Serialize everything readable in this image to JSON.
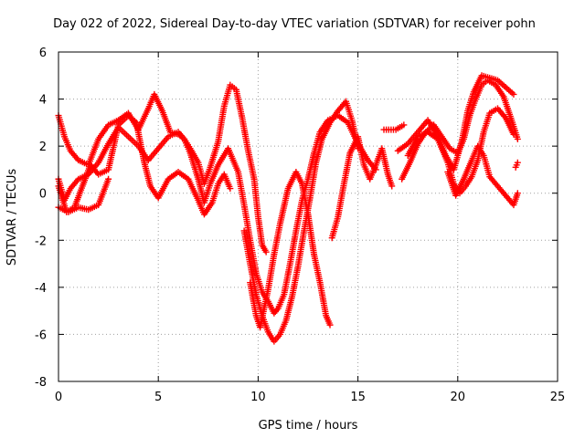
{
  "chart_data": {
    "type": "scatter",
    "title": "Day 022 of 2022, Sidereal Day-to-day VTEC variation (SDTVAR) for receiver pohn",
    "xlabel": "GPS time / hours",
    "ylabel": "SDTVAR / TECUs",
    "xlim": [
      0,
      25
    ],
    "ylim": [
      -8,
      6
    ],
    "xticks": [
      0,
      5,
      10,
      15,
      20,
      25
    ],
    "yticks": [
      -8,
      -6,
      -4,
      -2,
      0,
      2,
      4,
      6
    ],
    "grid": true,
    "marker": "+",
    "color": "#ff0000",
    "series": [
      {
        "name": "track-1",
        "points": [
          [
            0.0,
            3.3
          ],
          [
            0.3,
            2.4
          ],
          [
            0.6,
            1.8
          ],
          [
            1.0,
            1.4
          ],
          [
            1.5,
            1.2
          ],
          [
            2.0,
            2.3
          ],
          [
            2.5,
            2.9
          ],
          [
            3.0,
            3.1
          ],
          [
            3.5,
            3.4
          ],
          [
            4.0,
            2.7
          ],
          [
            4.5,
            3.6
          ],
          [
            4.8,
            4.2
          ],
          [
            5.2,
            3.5
          ],
          [
            5.6,
            2.6
          ],
          [
            6.0,
            2.5
          ],
          [
            6.3,
            2.3
          ],
          [
            6.6,
            1.9
          ],
          [
            7.0,
            1.3
          ],
          [
            7.3,
            0.4
          ],
          [
            7.6,
            1.1
          ],
          [
            8.0,
            2.2
          ],
          [
            8.3,
            3.7
          ],
          [
            8.6,
            4.6
          ],
          [
            8.9,
            4.4
          ],
          [
            9.2,
            3.2
          ],
          [
            9.5,
            1.8
          ],
          [
            9.8,
            0.6
          ],
          [
            10.0,
            -1.0
          ],
          [
            10.2,
            -2.2
          ],
          [
            10.4,
            -2.5
          ]
        ]
      },
      {
        "name": "track-2",
        "points": [
          [
            0.0,
            0.6
          ],
          [
            0.3,
            -0.3
          ],
          [
            0.6,
            0.2
          ],
          [
            1.0,
            0.6
          ],
          [
            1.5,
            0.8
          ],
          [
            2.0,
            1.3
          ],
          [
            2.5,
            2.1
          ],
          [
            3.0,
            2.8
          ],
          [
            3.5,
            2.4
          ],
          [
            4.0,
            2.0
          ],
          [
            4.5,
            1.4
          ],
          [
            5.0,
            1.9
          ],
          [
            5.5,
            2.4
          ],
          [
            6.0,
            2.6
          ],
          [
            6.3,
            2.3
          ],
          [
            6.6,
            1.7
          ],
          [
            7.0,
            0.6
          ],
          [
            7.3,
            -0.4
          ],
          [
            7.6,
            0.4
          ],
          [
            8.0,
            1.2
          ],
          [
            8.5,
            1.9
          ],
          [
            9.0,
            0.9
          ],
          [
            9.3,
            -0.5
          ],
          [
            9.6,
            -2.0
          ],
          [
            9.9,
            -3.4
          ],
          [
            10.2,
            -4.2
          ],
          [
            10.5,
            -4.6
          ],
          [
            10.8,
            -5.1
          ],
          [
            11.0,
            -4.9
          ],
          [
            11.3,
            -4.3
          ],
          [
            11.6,
            -3.0
          ],
          [
            11.9,
            -1.6
          ],
          [
            12.2,
            -0.3
          ],
          [
            12.5,
            0.6
          ],
          [
            12.8,
            1.7
          ],
          [
            13.1,
            2.6
          ],
          [
            13.5,
            3.1
          ],
          [
            14.0,
            3.3
          ],
          [
            14.5,
            3.0
          ],
          [
            15.0,
            2.1
          ],
          [
            15.5,
            1.4
          ],
          [
            15.9,
            1.0
          ]
        ]
      },
      {
        "name": "track-3",
        "points": [
          [
            0.0,
            0.3
          ],
          [
            0.4,
            -0.8
          ],
          [
            0.8,
            -0.6
          ],
          [
            1.2,
            0.3
          ],
          [
            1.6,
            1.2
          ],
          [
            2.0,
            0.8
          ],
          [
            2.5,
            1.0
          ],
          [
            3.0,
            2.9
          ],
          [
            3.5,
            3.3
          ],
          [
            3.9,
            3.0
          ],
          [
            4.3,
            1.3
          ],
          [
            4.6,
            0.3
          ],
          [
            5.0,
            -0.2
          ],
          [
            5.5,
            0.6
          ],
          [
            6.0,
            0.9
          ],
          [
            6.5,
            0.6
          ],
          [
            7.0,
            -0.3
          ],
          [
            7.3,
            -0.9
          ],
          [
            7.7,
            -0.4
          ],
          [
            8.0,
            0.4
          ],
          [
            8.3,
            0.8
          ],
          [
            8.6,
            0.2
          ]
        ]
      },
      {
        "name": "track-4",
        "points": [
          [
            0.0,
            -0.6
          ],
          [
            0.5,
            -0.8
          ],
          [
            1.0,
            -0.6
          ],
          [
            1.5,
            -0.7
          ],
          [
            2.0,
            -0.5
          ],
          [
            2.5,
            0.6
          ]
        ]
      },
      {
        "name": "track-5",
        "points": [
          [
            9.3,
            -1.6
          ],
          [
            9.6,
            -3.0
          ],
          [
            9.9,
            -4.3
          ],
          [
            10.2,
            -5.2
          ],
          [
            10.5,
            -5.9
          ],
          [
            10.8,
            -6.3
          ],
          [
            11.1,
            -6.0
          ],
          [
            11.4,
            -5.4
          ],
          [
            11.7,
            -4.4
          ],
          [
            12.0,
            -3.1
          ],
          [
            12.3,
            -1.6
          ],
          [
            12.6,
            -0.2
          ],
          [
            12.9,
            1.3
          ],
          [
            13.2,
            2.3
          ],
          [
            13.6,
            3.0
          ],
          [
            14.0,
            3.5
          ],
          [
            14.4,
            3.9
          ],
          [
            14.7,
            3.1
          ],
          [
            15.0,
            1.9
          ]
        ]
      },
      {
        "name": "track-6",
        "points": [
          [
            9.6,
            -3.8
          ],
          [
            9.9,
            -5.2
          ],
          [
            10.1,
            -5.7
          ],
          [
            10.5,
            -4.1
          ],
          [
            10.8,
            -2.6
          ],
          [
            11.1,
            -1.3
          ],
          [
            11.5,
            0.2
          ],
          [
            11.9,
            0.9
          ],
          [
            12.2,
            0.4
          ],
          [
            12.5,
            -0.9
          ],
          [
            12.8,
            -2.6
          ],
          [
            13.1,
            -3.8
          ],
          [
            13.4,
            -5.2
          ],
          [
            13.6,
            -5.6
          ]
        ]
      },
      {
        "name": "track-7",
        "points": [
          [
            13.7,
            -1.9
          ],
          [
            14.0,
            -1.0
          ],
          [
            14.3,
            0.4
          ],
          [
            14.6,
            1.7
          ],
          [
            15.0,
            2.4
          ],
          [
            15.3,
            1.2
          ],
          [
            15.6,
            0.6
          ],
          [
            15.9,
            1.2
          ],
          [
            16.2,
            1.9
          ],
          [
            16.5,
            0.8
          ],
          [
            16.7,
            0.3
          ]
        ]
      },
      {
        "name": "track-8",
        "points": [
          [
            17.2,
            0.6
          ],
          [
            17.6,
            1.3
          ],
          [
            18.0,
            2.1
          ],
          [
            18.4,
            2.6
          ],
          [
            18.8,
            2.9
          ],
          [
            19.2,
            2.4
          ],
          [
            19.6,
            1.9
          ],
          [
            20.0,
            1.7
          ],
          [
            20.3,
            2.3
          ],
          [
            20.6,
            3.3
          ],
          [
            20.9,
            4.0
          ],
          [
            21.2,
            4.6
          ],
          [
            21.5,
            4.8
          ],
          [
            21.9,
            4.6
          ],
          [
            22.3,
            4.1
          ],
          [
            22.7,
            3.1
          ],
          [
            23.0,
            2.3
          ]
        ]
      },
      {
        "name": "track-9",
        "points": [
          [
            17.0,
            1.8
          ],
          [
            17.5,
            2.1
          ],
          [
            18.0,
            2.6
          ],
          [
            18.5,
            3.1
          ],
          [
            19.0,
            2.4
          ],
          [
            19.4,
            1.6
          ],
          [
            19.8,
            1.0
          ],
          [
            20.2,
            2.2
          ],
          [
            20.5,
            3.5
          ],
          [
            20.8,
            4.3
          ],
          [
            21.2,
            5.0
          ],
          [
            21.6,
            4.9
          ],
          [
            22.0,
            4.8
          ],
          [
            22.4,
            4.5
          ],
          [
            22.8,
            4.2
          ]
        ]
      },
      {
        "name": "track-10",
        "points": [
          [
            17.5,
            1.6
          ],
          [
            18.0,
            2.4
          ],
          [
            18.5,
            2.6
          ],
          [
            19.0,
            2.3
          ],
          [
            19.5,
            1.3
          ],
          [
            19.8,
            0.4
          ],
          [
            20.1,
            0.0
          ],
          [
            20.4,
            0.3
          ],
          [
            20.7,
            0.7
          ],
          [
            21.0,
            1.4
          ],
          [
            21.3,
            2.6
          ],
          [
            21.6,
            3.4
          ],
          [
            22.0,
            3.6
          ],
          [
            22.4,
            3.2
          ],
          [
            22.8,
            2.5
          ]
        ]
      },
      {
        "name": "track-11",
        "points": [
          [
            19.5,
            0.9
          ],
          [
            19.9,
            -0.1
          ],
          [
            20.3,
            0.6
          ],
          [
            20.7,
            1.4
          ],
          [
            21.0,
            2.0
          ],
          [
            21.3,
            1.6
          ],
          [
            21.6,
            0.7
          ],
          [
            22.0,
            0.3
          ],
          [
            22.4,
            -0.1
          ],
          [
            22.8,
            -0.5
          ],
          [
            23.0,
            0.0
          ]
        ]
      },
      {
        "name": "track-12",
        "points": [
          [
            16.3,
            2.7
          ],
          [
            16.9,
            2.7
          ],
          [
            17.3,
            2.9
          ],
          [
            18.6,
            3.0
          ],
          [
            22.9,
            1.1
          ],
          [
            23.0,
            1.3
          ]
        ]
      }
    ]
  }
}
